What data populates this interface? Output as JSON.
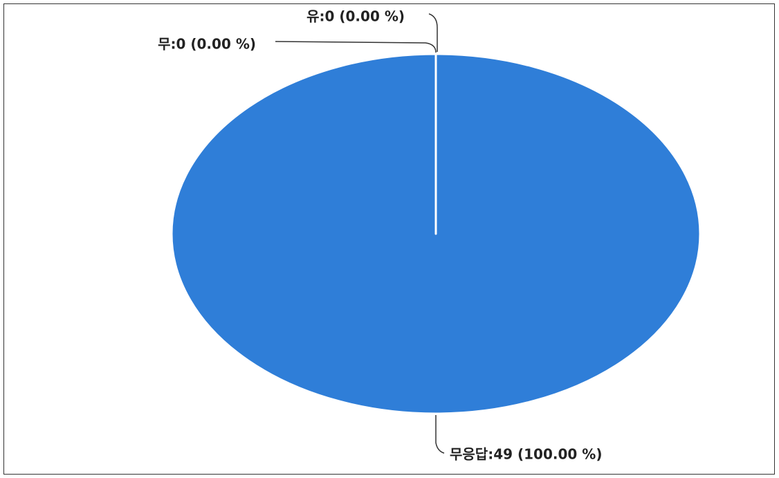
{
  "chart_data": {
    "type": "pie",
    "categories": [
      "유",
      "무",
      "무응답"
    ],
    "values": [
      0,
      0,
      49
    ],
    "value_labels": [
      "유:0 (0.00 %)",
      "무:0 (0.00 %)",
      "무응답:49 (100.00 %)"
    ],
    "colors": [
      "#e8743b",
      "#19a979",
      "#2f7ed8"
    ]
  }
}
